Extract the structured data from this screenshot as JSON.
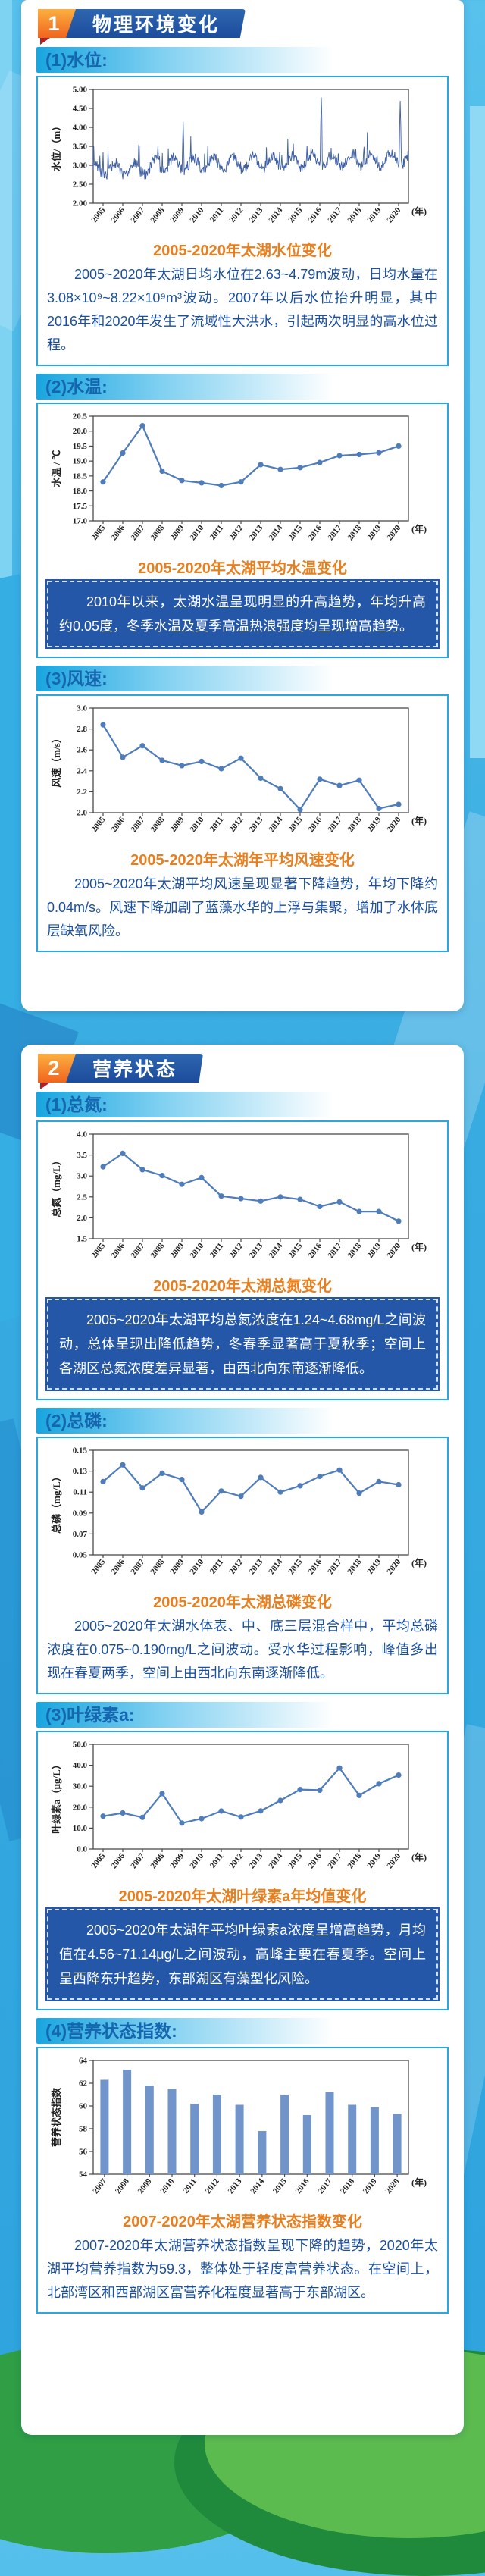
{
  "colors": {
    "accent_orange": "#e87f1e",
    "banner_blue": "#2a5caa",
    "heading_text": "#1566ae",
    "body_text": "#1b4fa0",
    "callout_bg": "#2457a7",
    "panel_border": "#2aa7e0",
    "line_color": "#4f7cba",
    "bar_color": "#7195ca"
  },
  "sections": [
    {
      "number": "1",
      "title": "物理环境变化",
      "blocks": [
        {
          "heading": "(1)水位:",
          "caption": "2005-2020年太湖水位变化",
          "paragraph": "2005~2020年太湖日均水位在2.63~4.79m波动，日均水量在3.08×10⁹~8.22×10⁹m³波动。2007年以后水位抬升明显，其中2016年和2020年发生了流域性大洪水，引起两次明显的高水位过程。"
        },
        {
          "heading": "(2)水温:",
          "caption": "2005-2020年太湖平均水温变化",
          "paragraph": "2010年以来，太湖水温呈现明显的升高趋势，年均升高约0.05度，冬季水温及夏季高温热浪强度均呈现增高趋势。"
        },
        {
          "heading": "(3)风速:",
          "caption": "2005-2020年太湖年平均风速变化",
          "paragraph": "2005~2020年太湖平均风速呈现显著下降趋势，年均下降约0.04m/s。风速下降加剧了蓝藻水华的上浮与集聚，增加了水体底层缺氧风险。"
        }
      ]
    },
    {
      "number": "2",
      "title": "营养状态",
      "blocks": [
        {
          "heading": "(1)总氮:",
          "caption": "2005-2020年太湖总氮变化",
          "paragraph": "2005~2020年太湖平均总氮浓度在1.24~4.68mg/L之间波动，总体呈现出降低趋势，冬春季显著高于夏秋季；空间上各湖区总氮浓度差异显著，由西北向东南逐渐降低。"
        },
        {
          "heading": "(2)总磷:",
          "caption": "2005-2020年太湖总磷变化",
          "paragraph": "2005~2020年太湖水体表、中、底三层混合样中，平均总磷浓度在0.075~0.190mg/L之间波动。受水华过程影响，峰值多出现在春夏两季，空间上由西北向东南逐渐降低。"
        },
        {
          "heading": "(3)叶绿素a:",
          "caption": "2005-2020年太湖叶绿素a年均值变化",
          "paragraph": "2005~2020年太湖年平均叶绿素a浓度呈增高趋势，月均值在4.56~71.14μg/L之间波动，高峰主要在春夏季。空间上呈西降东升趋势，东部湖区有藻型化风险。"
        },
        {
          "heading": "(4)营养状态指数:",
          "caption": "2007-2020年太湖营养状态指数变化",
          "paragraph": "2007-2020年太湖营养状态指数呈现下降的趋势，2020年太湖平均营养指数为59.3，整体处于轻度富营养状态。在空间上，北部湾区和西部湖区富营养化程度显著高于东部湖区。"
        }
      ]
    }
  ],
  "chart_data": [
    {
      "type": "line",
      "variant": "daily",
      "title": "2005-2020年太湖水位变化",
      "ylabel": "水位/（m）",
      "xunit": "(年)",
      "categories": [
        "2005",
        "2006",
        "2007",
        "2008",
        "2009",
        "2010",
        "2011",
        "2012",
        "2013",
        "2014",
        "2015",
        "2016",
        "2017",
        "2018",
        "2019",
        "2020"
      ],
      "ylim": [
        2.0,
        5.0
      ],
      "ystep": 0.5,
      "ydec": 2,
      "value_range": [
        2.63,
        4.79
      ],
      "flood_peaks": {
        "2009": 4.15,
        "2016": 4.79,
        "2020": 4.7
      },
      "line_color": "#3d5fa5",
      "grid": false,
      "legend": "none"
    },
    {
      "type": "line",
      "title": "2005-2020年太湖平均水温变化",
      "ylabel": "水温 / ℃",
      "xunit": "(年)",
      "categories": [
        "2005",
        "2006",
        "2007",
        "2008",
        "2009",
        "2010",
        "2011",
        "2012",
        "2013",
        "2014",
        "2015",
        "2016",
        "2017",
        "2018",
        "2019",
        "2020"
      ],
      "values": [
        18.3,
        19.27,
        20.18,
        18.66,
        18.35,
        18.27,
        18.18,
        18.3,
        18.88,
        18.72,
        18.78,
        18.95,
        19.18,
        19.22,
        19.28,
        19.5
      ],
      "ylim": [
        17.0,
        20.5
      ],
      "ystep": 0.5,
      "ydec": 1,
      "grid": false,
      "legend": "none"
    },
    {
      "type": "line",
      "title": "2005-2020年太湖年平均风速变化",
      "ylabel": "风速（m/s）",
      "xunit": "(年)",
      "categories": [
        "2005",
        "2006",
        "2007",
        "2008",
        "2009",
        "2010",
        "2011",
        "2012",
        "2013",
        "2014",
        "2015",
        "2016",
        "2017",
        "2018",
        "2019",
        "2020"
      ],
      "values": [
        2.84,
        2.53,
        2.64,
        2.5,
        2.45,
        2.49,
        2.42,
        2.52,
        2.33,
        2.23,
        2.03,
        2.32,
        2.26,
        2.31,
        2.04,
        2.08
      ],
      "ylim": [
        2.0,
        3.0
      ],
      "ystep": 0.2,
      "ydec": 1,
      "grid": false,
      "legend": "none"
    },
    {
      "type": "line",
      "title": "2005-2020年太湖总氮变化",
      "ylabel": "总氮（mg/L）",
      "xunit": "(年)",
      "categories": [
        "2005",
        "2006",
        "2007",
        "2008",
        "2009",
        "2010",
        "2011",
        "2012",
        "2013",
        "2014",
        "2015",
        "2016",
        "2017",
        "2018",
        "2019",
        "2020"
      ],
      "values": [
        3.22,
        3.54,
        3.15,
        3.01,
        2.8,
        2.96,
        2.52,
        2.46,
        2.4,
        2.5,
        2.44,
        2.27,
        2.38,
        2.15,
        2.15,
        1.92
      ],
      "ylim": [
        1.5,
        4.0
      ],
      "ystep": 0.5,
      "ydec": 1,
      "grid": false,
      "legend": "none"
    },
    {
      "type": "line",
      "title": "2005-2020年太湖总磷变化",
      "ylabel": "总磷（mg/L）",
      "xunit": "(年)",
      "categories": [
        "2005",
        "2006",
        "2007",
        "2008",
        "2009",
        "2010",
        "2011",
        "2012",
        "2013",
        "2014",
        "2015",
        "2016",
        "2017",
        "2018",
        "2019",
        "2020"
      ],
      "values": [
        0.12,
        0.136,
        0.114,
        0.128,
        0.122,
        0.091,
        0.111,
        0.106,
        0.124,
        0.11,
        0.116,
        0.125,
        0.131,
        0.109,
        0.12,
        0.117
      ],
      "ylim": [
        0.05,
        0.15
      ],
      "ystep": 0.02,
      "ydec": 2,
      "grid": false,
      "legend": "none"
    },
    {
      "type": "line",
      "title": "2005-2020年太湖叶绿素a年均值变化",
      "ylabel": "叶绿素a（μg/L）",
      "xunit": "(年)",
      "categories": [
        "2005",
        "2006",
        "2007",
        "2008",
        "2009",
        "2010",
        "2011",
        "2012",
        "2013",
        "2014",
        "2015",
        "2016",
        "2017",
        "2018",
        "2019",
        "2020"
      ],
      "values": [
        15.7,
        17.2,
        15.1,
        26.5,
        12.4,
        14.5,
        18.1,
        15.3,
        18.2,
        23.2,
        28.4,
        28.1,
        38.7,
        25.6,
        31.2,
        35.3
      ],
      "ylim": [
        0,
        50
      ],
      "ystep": 10,
      "ydec": 1,
      "grid": false,
      "legend": "none"
    },
    {
      "type": "bar",
      "title": "2007-2020年太湖营养状态指数变化",
      "ylabel": "营养状态指数",
      "xunit": "(年)",
      "categories": [
        "2007",
        "2008",
        "2009",
        "2010",
        "2011",
        "2012",
        "2013",
        "2014",
        "2015",
        "2016",
        "2017",
        "2018",
        "2019",
        "2020"
      ],
      "values": [
        62.3,
        63.2,
        61.8,
        61.5,
        60.2,
        61.0,
        60.1,
        57.8,
        61.0,
        59.2,
        61.2,
        60.1,
        59.9,
        59.3
      ],
      "ylim": [
        54,
        64
      ],
      "ystep": 2,
      "ydec": 0,
      "bar_color": "#7195ca",
      "grid": false,
      "legend": "none"
    }
  ]
}
